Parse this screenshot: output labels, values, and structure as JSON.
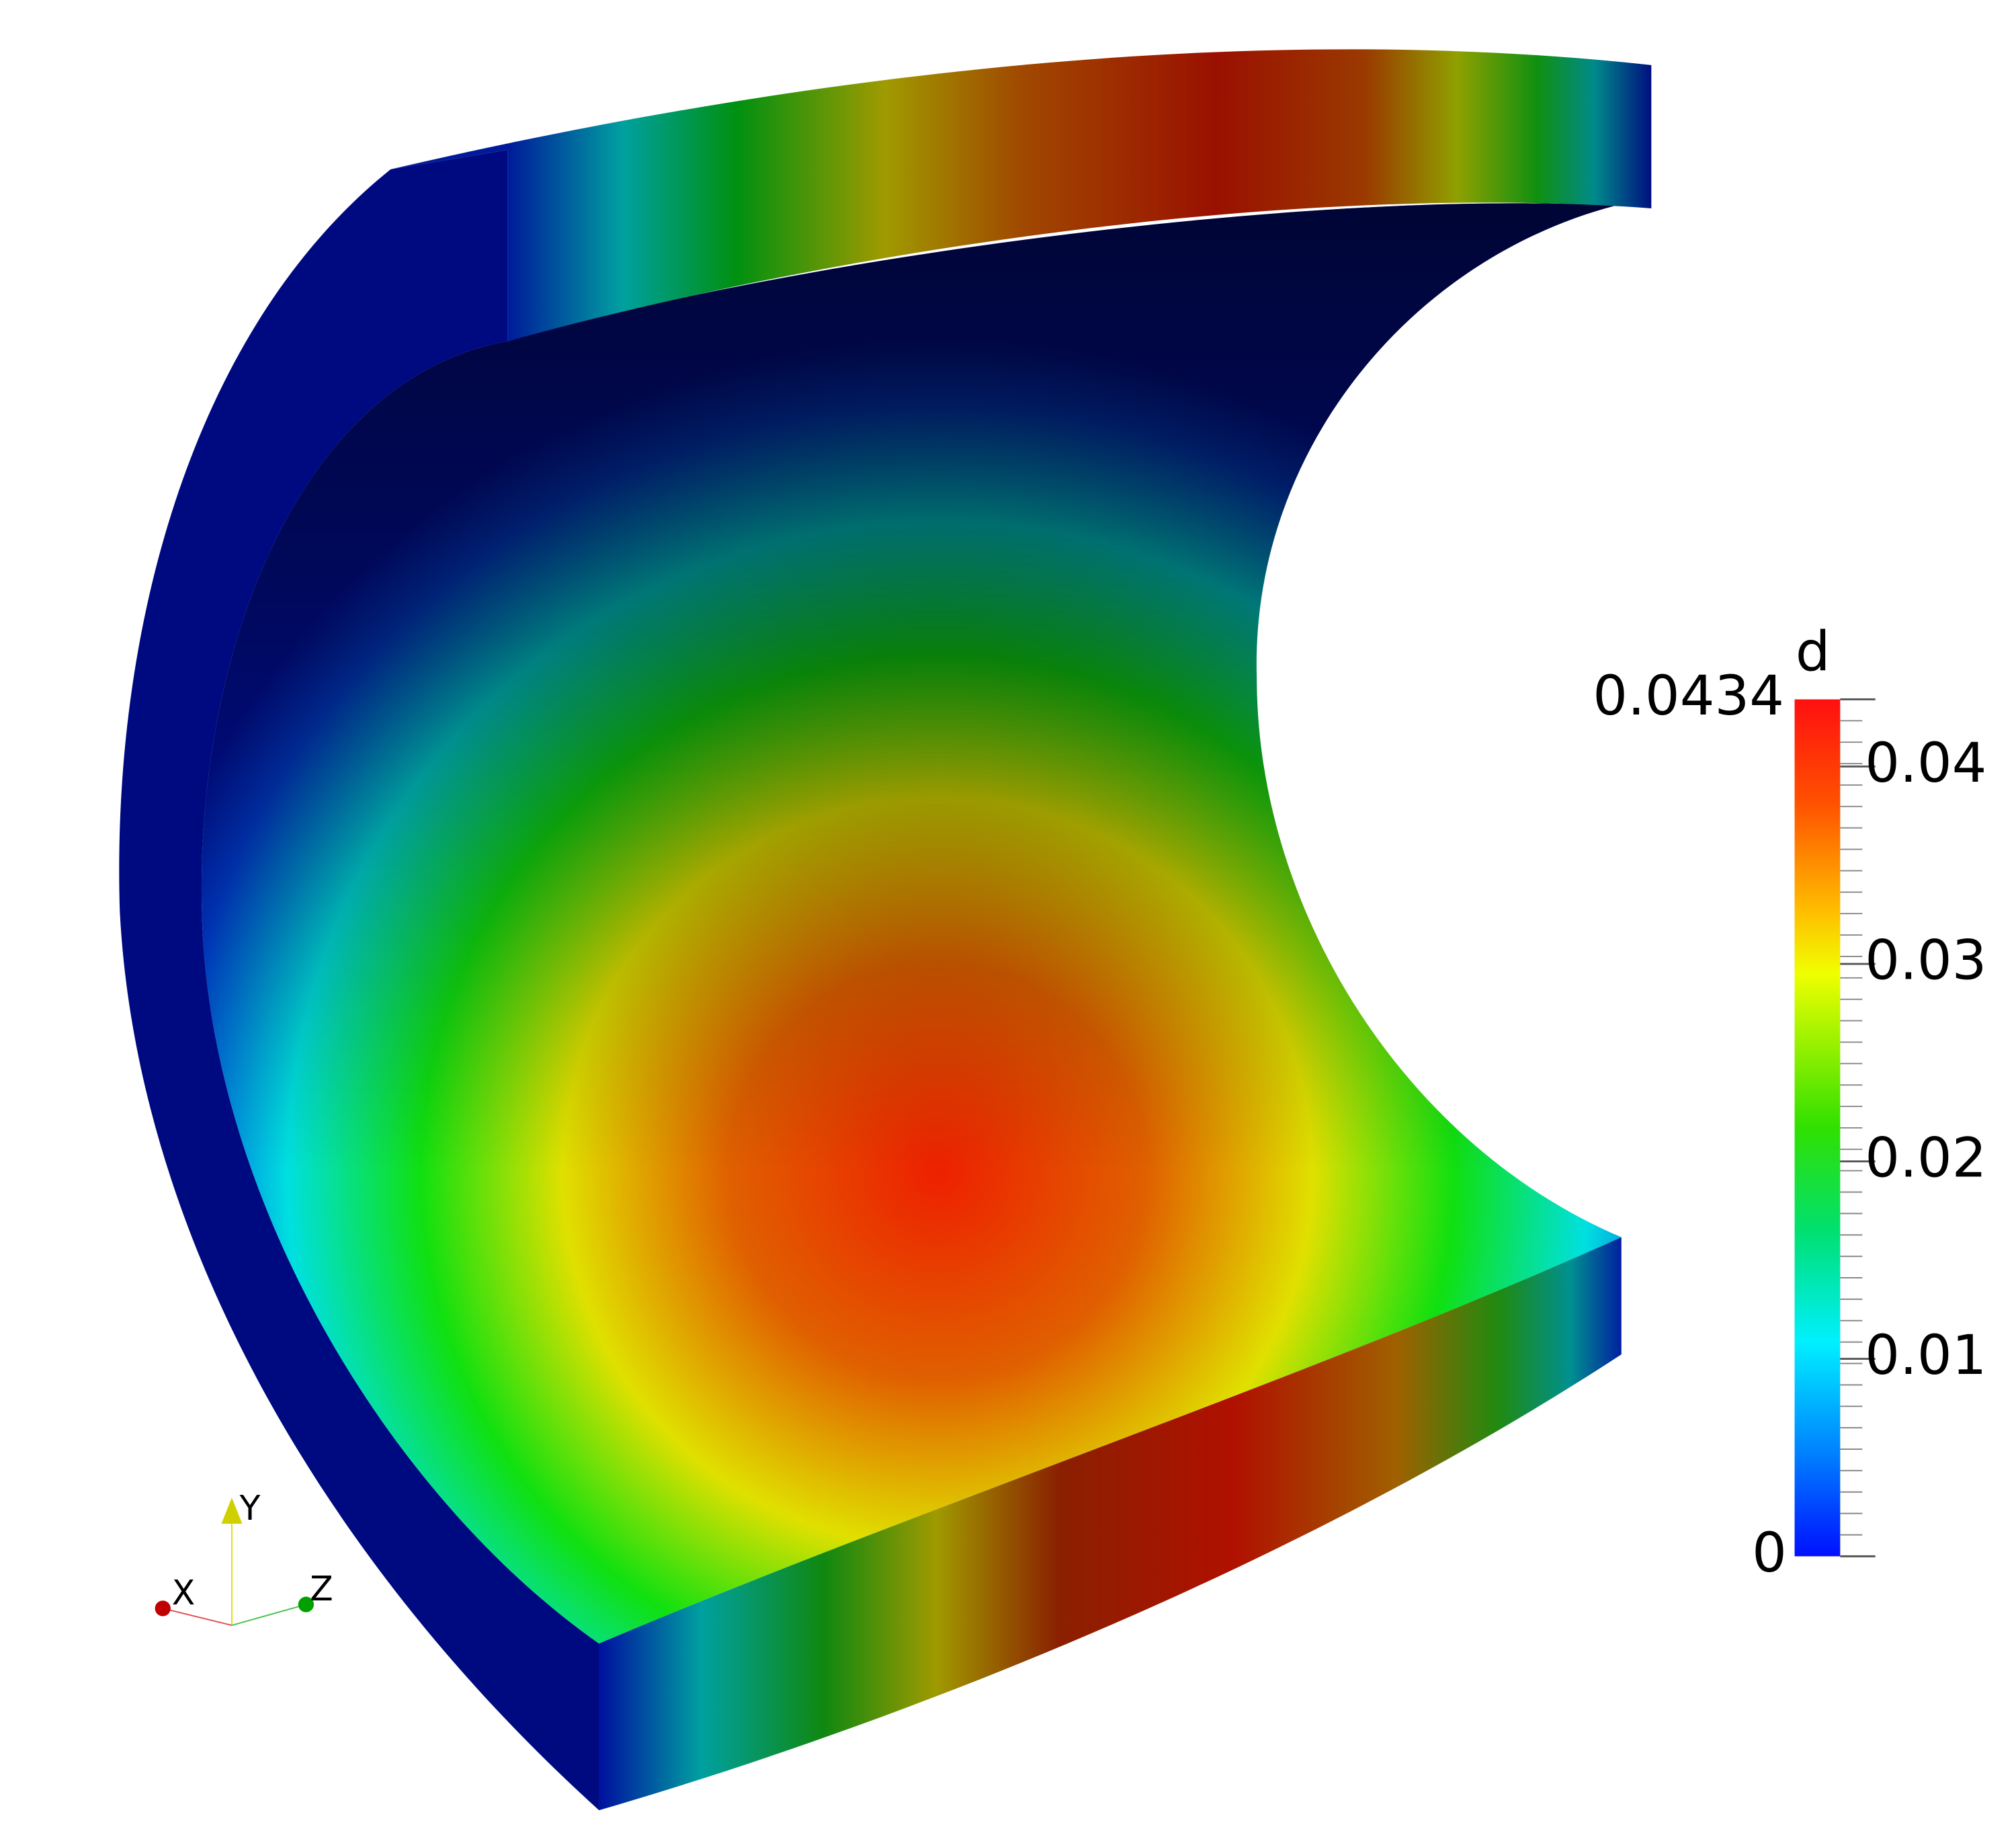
{
  "colorbar": {
    "title": "d",
    "min": 0,
    "max": 0.0434,
    "ticks": [
      0.01,
      0.02,
      0.03,
      0.04
    ]
  },
  "axes_triad": {
    "labels": [
      "X",
      "Y",
      "Z"
    ]
  }
}
